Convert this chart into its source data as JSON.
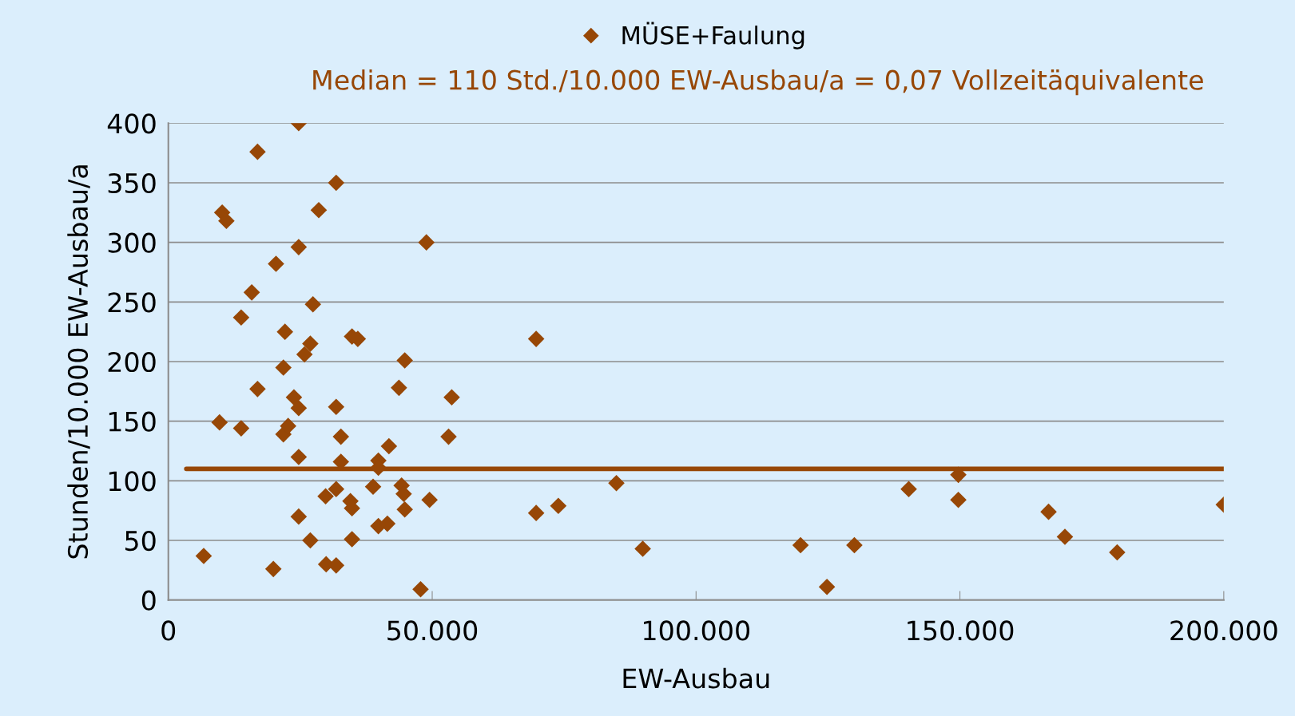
{
  "chart_data": {
    "type": "scatter",
    "xlabel": "EW-Ausbau",
    "ylabel": "Stunden/10.000 EW-Ausbau/a",
    "annotations": [
      "Median = 110 Std./10.000 EW-Ausbau/a = 0,07 Vollzeitäquivalente"
    ],
    "series": [
      {
        "name": "MÜSE+Faulung",
        "color": "#974706",
        "marker": "diamond",
        "x": [
          6700,
          9700,
          10200,
          11000,
          13800,
          13800,
          15800,
          16900,
          16900,
          19900,
          20400,
          21800,
          21800,
          22100,
          22700,
          23800,
          24700,
          24700,
          24700,
          24700,
          24700,
          25800,
          26900,
          26900,
          27400,
          28500,
          29800,
          29900,
          31800,
          31800,
          31800,
          31800,
          32700,
          32700,
          34500,
          34800,
          34800,
          34800,
          35900,
          38800,
          39800,
          39800,
          39800,
          41500,
          41800,
          43700,
          44200,
          44600,
          44800,
          44800,
          47800,
          48900,
          49500,
          53100,
          53700,
          69700,
          69700,
          73900,
          84900,
          89900,
          119800,
          124800,
          130000,
          140300,
          149700,
          149700,
          166800,
          169900,
          179800,
          200000
        ],
        "values": [
          37,
          149,
          325,
          318,
          237,
          144,
          258,
          376,
          177,
          26,
          282,
          195,
          139,
          225,
          146,
          170,
          400,
          296,
          161,
          120,
          70,
          206,
          50,
          215,
          248,
          327,
          87,
          30,
          350,
          162,
          93,
          29,
          137,
          116,
          83,
          77,
          51,
          221,
          219,
          95,
          117,
          111,
          62,
          64,
          129,
          178,
          96,
          89,
          201,
          76,
          9,
          300,
          84,
          137,
          170,
          219,
          73,
          79,
          98,
          43,
          46,
          11,
          46,
          93,
          105,
          84,
          74,
          53,
          40,
          80
        ]
      },
      {
        "type": "line",
        "color": "#974706",
        "marker": "none",
        "x": [
          3400,
          200000
        ],
        "values": [
          110,
          110
        ]
      }
    ],
    "xlim": [
      0,
      200000
    ],
    "xticks": [
      {
        "value": 0,
        "label": "0"
      },
      {
        "value": 50000,
        "label": "50.000"
      },
      {
        "value": 100000,
        "label": "100.000"
      },
      {
        "value": 150000,
        "label": "150.000"
      },
      {
        "value": 200000,
        "label": "200.000"
      }
    ],
    "ylim": [
      0,
      400
    ],
    "yticks": [
      0,
      50,
      100,
      150,
      200,
      250,
      300,
      350,
      400
    ],
    "grid": "y",
    "legend": "top"
  }
}
